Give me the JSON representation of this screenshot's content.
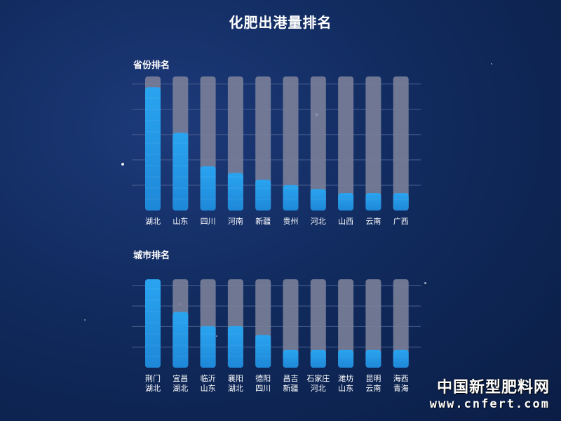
{
  "title": "化肥出港量排名",
  "watermark": {
    "name": "中国新型肥料网",
    "url": "www.cnfert.com"
  },
  "colors": {
    "bar_fill": "#1e88d8",
    "bar_track": "#7a7f99",
    "grid": "#4a5f8f"
  },
  "chart_data": [
    {
      "type": "bar",
      "title": "省份排名",
      "categories": [
        [
          "湖北"
        ],
        [
          "山东"
        ],
        [
          "四川"
        ],
        [
          "河南"
        ],
        [
          "新疆"
        ],
        [
          "贵州"
        ],
        [
          "河北"
        ],
        [
          "山西"
        ],
        [
          "云南"
        ],
        [
          "广西"
        ]
      ],
      "values": [
        0.92,
        0.58,
        0.33,
        0.28,
        0.23,
        0.19,
        0.16,
        0.13,
        0.13,
        0.13
      ],
      "ylim": [
        0,
        1
      ],
      "grid": true,
      "gridlines": 5
    },
    {
      "type": "bar",
      "title": "城市排名",
      "categories": [
        [
          "荆门",
          "湖北"
        ],
        [
          "宜昌",
          "湖北"
        ],
        [
          "临沂",
          "山东"
        ],
        [
          "襄阳",
          "湖北"
        ],
        [
          "德阳",
          "四川"
        ],
        [
          "昌吉",
          "新疆"
        ],
        [
          "石家庄",
          "河北"
        ],
        [
          "潍坊",
          "山东"
        ],
        [
          "昆明",
          "云南"
        ],
        [
          "海西",
          "青海"
        ]
      ],
      "values": [
        1.0,
        0.63,
        0.47,
        0.47,
        0.37,
        0.2,
        0.2,
        0.2,
        0.2,
        0.2
      ],
      "ylim": [
        0,
        1
      ],
      "grid": true,
      "gridlines": 4
    }
  ]
}
